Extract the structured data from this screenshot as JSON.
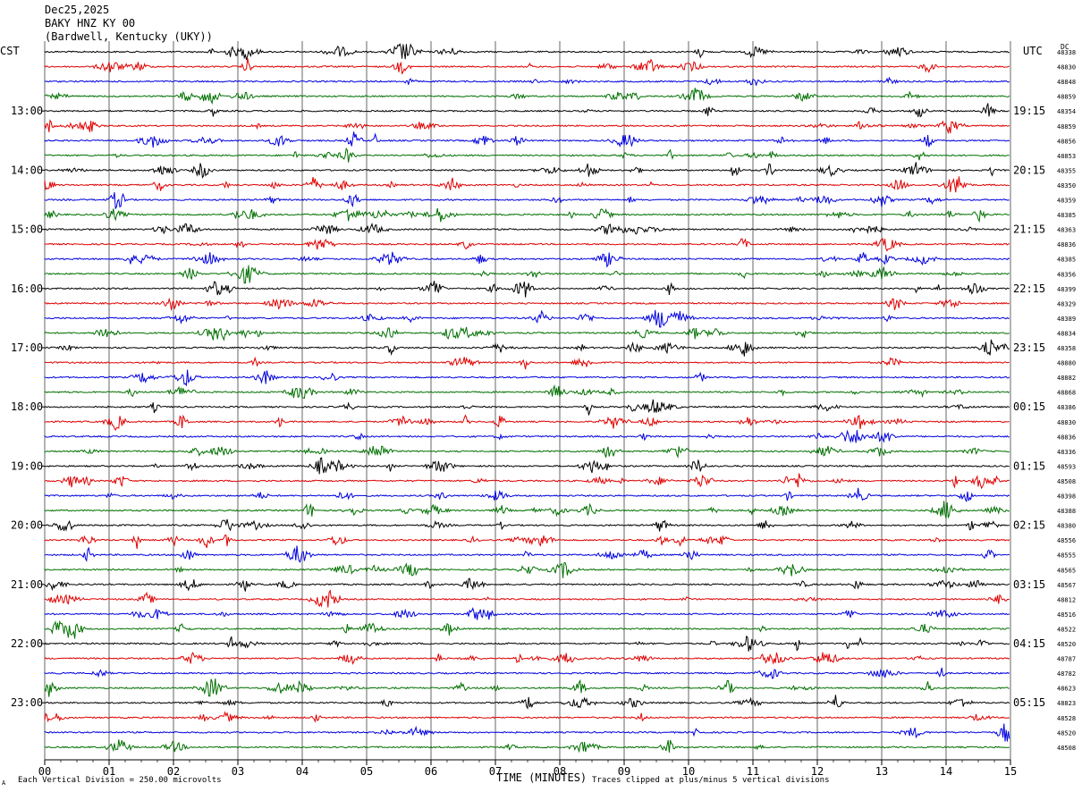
{
  "header": {
    "date": "Dec25,2025",
    "station": "BAKY HNZ KY 00",
    "location": "(Bardwell, Kentucky (UKY))"
  },
  "left_axis_label": "CST",
  "right_axis_label": "UTC",
  "dc_label": "DC",
  "footer": {
    "scale_note": "Each Vertical Division =  250.00 microvolts",
    "clip_note": "Traces clipped at plus/minus 5 vertical divisions",
    "corner_mark": "A"
  },
  "colors": {
    "trace_cycle": [
      "#000000",
      "#e00000",
      "#0000e0",
      "#007000"
    ],
    "grid": "#000000"
  },
  "chart_data": {
    "type": "line",
    "title": "Dec25,2025 BAKY HNZ KY 00 (Bardwell, Kentucky (UKY))",
    "xlabel": "TIME (MINUTES)",
    "xlim": [
      0,
      15
    ],
    "x_ticks": [
      "00",
      "01",
      "02",
      "03",
      "04",
      "05",
      "06",
      "07",
      "08",
      "09",
      "10",
      "11",
      "12",
      "13",
      "14",
      "15"
    ],
    "left_time_labels": [
      "13:00",
      "14:00",
      "15:00",
      "16:00",
      "17:00",
      "18:00",
      "19:00",
      "20:00",
      "21:00",
      "22:00",
      "23:00"
    ],
    "right_time_labels": [
      "19:15",
      "20:15",
      "21:15",
      "22:15",
      "23:15",
      "00:15",
      "01:15",
      "02:15",
      "03:15",
      "04:15",
      "05:15"
    ],
    "trace_count": 48,
    "dc_offsets": [
      "48338",
      "48830",
      "48848",
      "48859",
      "48354",
      "48859",
      "48856",
      "48853",
      "48355",
      "48350",
      "48359",
      "48385",
      "48363",
      "48836",
      "48385",
      "48356",
      "48399",
      "48329",
      "48389",
      "48834",
      "48358",
      "48880",
      "48882",
      "48868",
      "48386",
      "48830",
      "48836",
      "48336",
      "48593",
      "48508",
      "48398",
      "48388",
      "48380",
      "48556",
      "48555",
      "48565",
      "48567",
      "48812",
      "48516",
      "48522",
      "48520",
      "48787",
      "48782",
      "48623",
      "48823",
      "48528",
      "48520",
      "48508"
    ]
  }
}
